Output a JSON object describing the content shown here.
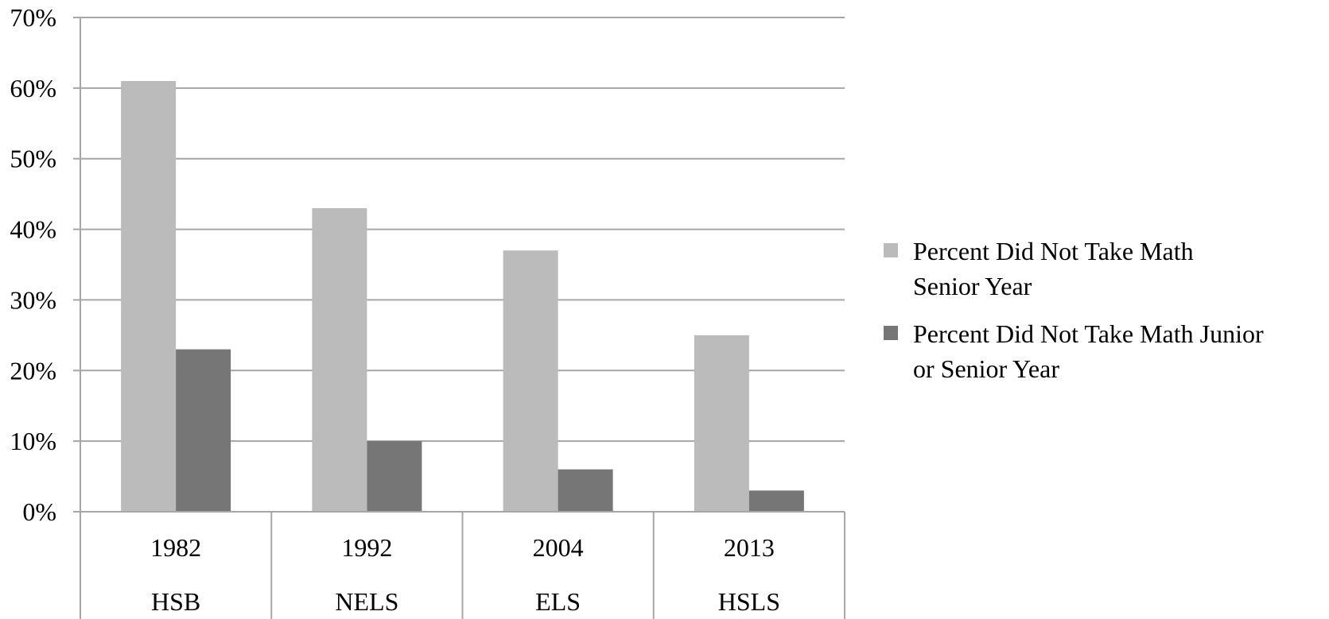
{
  "chart_data": {
    "type": "bar",
    "title": "",
    "xlabel": "",
    "ylabel": "",
    "ylim": [
      0,
      70
    ],
    "y_ticks": [
      0,
      10,
      20,
      30,
      40,
      50,
      60,
      70
    ],
    "y_tick_labels": [
      "0%",
      "10%",
      "20%",
      "30%",
      "40%",
      "50%",
      "60%",
      "70%"
    ],
    "grid": true,
    "legend_position": "right",
    "categories": [
      "1982",
      "1992",
      "2004",
      "2013"
    ],
    "category_sublabels": [
      "HSB",
      "NELS",
      "ELS",
      "HSLS"
    ],
    "series": [
      {
        "name": "Percent Did Not Take Math Senior Year",
        "legend_lines": [
          "Percent Did Not Take Math",
          "Senior Year"
        ],
        "color": "#bbbbbb",
        "values": [
          61,
          43,
          37,
          25
        ]
      },
      {
        "name": "Percent Did Not Take Math Junior or Senior Year",
        "legend_lines": [
          "Percent Did Not Take Math Junior",
          "or Senior Year"
        ],
        "color": "#767676",
        "values": [
          23,
          10,
          6,
          3
        ]
      }
    ]
  },
  "colors": {
    "gridline": "#a6a6a6",
    "axis": "#a6a6a6",
    "text": "#000000"
  }
}
